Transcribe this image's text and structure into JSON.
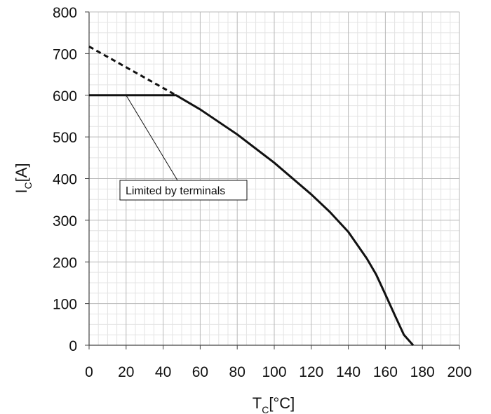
{
  "chart_data": {
    "type": "line",
    "xlabel": {
      "main": "T",
      "subscript": "C",
      "unit": "[°C]"
    },
    "ylabel": {
      "main": "I",
      "subscript": "C",
      "unit": "[A]"
    },
    "xlim": [
      0,
      200
    ],
    "ylim": [
      0,
      800
    ],
    "x_ticks": [
      "0",
      "20",
      "40",
      "60",
      "80",
      "100",
      "120",
      "140",
      "160",
      "180",
      "200"
    ],
    "y_ticks": [
      "0",
      "100",
      "200",
      "300",
      "400",
      "500",
      "600",
      "700",
      "800"
    ],
    "grid": {
      "major": true,
      "minor": true,
      "x_minor_step": 5,
      "y_minor_step": 25
    },
    "series": [
      {
        "style": "solid",
        "points": [
          [
            0,
            600
          ],
          [
            47,
            600
          ],
          [
            60,
            566
          ],
          [
            80,
            506
          ],
          [
            100,
            438
          ],
          [
            120,
            362
          ],
          [
            130,
            320
          ],
          [
            140,
            272
          ],
          [
            150,
            208
          ],
          [
            155,
            170
          ],
          [
            160,
            122
          ],
          [
            165,
            73
          ],
          [
            170,
            25
          ],
          [
            175,
            0
          ]
        ]
      },
      {
        "style": "dashed",
        "points": [
          [
            0,
            717
          ],
          [
            47,
            600
          ]
        ]
      }
    ],
    "annotations": [
      {
        "text": "Limited by terminals",
        "points_to": [
          20,
          600
        ]
      }
    ],
    "colors": {
      "line": "#111111",
      "grid_major": "#b9b9b9",
      "grid_minor": "#e4e4e4",
      "axis": "#444444"
    }
  }
}
